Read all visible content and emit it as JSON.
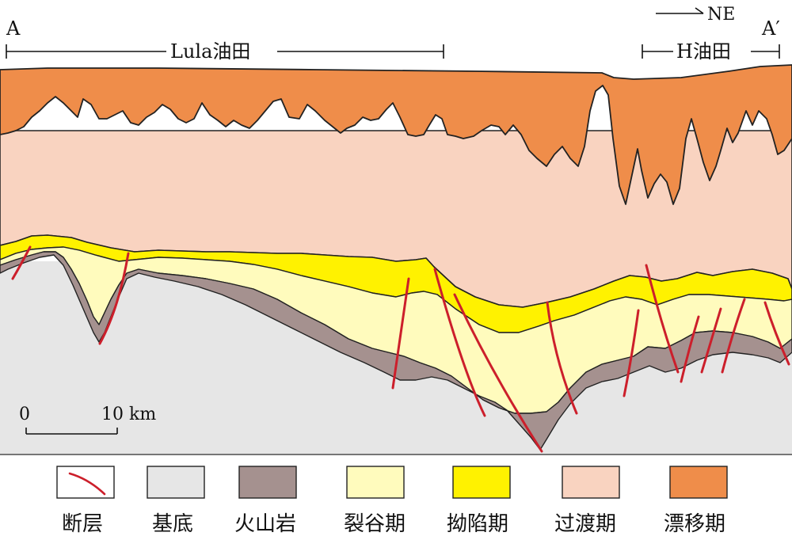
{
  "header": {
    "start_label": "A",
    "end_label": "A′",
    "direction": "NE",
    "fields": [
      {
        "name": "Lula油田"
      },
      {
        "name": "H油田"
      }
    ]
  },
  "scale_bar": {
    "zero": "0",
    "end": "10 km"
  },
  "colors": {
    "fault": "#cc1f2b",
    "basement": "#e6e6e6",
    "volcanic": "#a5918f",
    "rift": "#fffbbd",
    "sag": "#fff200",
    "transition": "#f9d3c0",
    "drift": "#ef8d4a"
  },
  "legend": [
    {
      "label": "断层",
      "key": "fault"
    },
    {
      "label": "基底",
      "key": "basement"
    },
    {
      "label": "火山岩",
      "key": "volcanic"
    },
    {
      "label": "裂谷期",
      "key": "rift"
    },
    {
      "label": "拗陷期",
      "key": "sag"
    },
    {
      "label": "过渡期",
      "key": "transition"
    },
    {
      "label": "漂移期",
      "key": "drift"
    }
  ]
}
